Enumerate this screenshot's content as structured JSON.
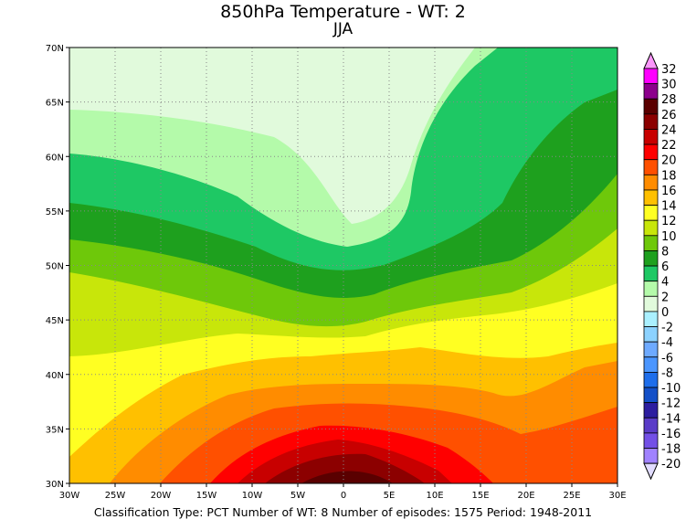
{
  "title": "850hPa Temperature - WT: 2",
  "subtitle": "JJA",
  "footer": "Classification Type: PCT Number of WT: 8 Number of episodes: 1575 Period: 1948-2011",
  "map": {
    "lon_range": [
      -30,
      30
    ],
    "lat_range": [
      30,
      70
    ],
    "lon_ticks": [
      "30W",
      "25W",
      "20W",
      "15W",
      "10W",
      "5W",
      "0",
      "5E",
      "10E",
      "15E",
      "20E",
      "25E",
      "30E"
    ],
    "lat_ticks": [
      "70N",
      "65N",
      "60N",
      "55N",
      "50N",
      "45N",
      "40N",
      "35N",
      "30N"
    ],
    "grid": "dotted every 5 degrees",
    "field": "850hPa temperature (°C), shaded contours"
  },
  "colorbar": {
    "labels": [
      "32",
      "30",
      "28",
      "26",
      "24",
      "22",
      "20",
      "18",
      "16",
      "14",
      "12",
      "10",
      "8",
      "6",
      "4",
      "2",
      "0",
      "-2",
      "-4",
      "-6",
      "-8",
      "-10",
      "-12",
      "-14",
      "-16",
      "-18",
      "-20"
    ],
    "over_color": "#fa96fa",
    "under_color": "#e1dcff",
    "colors": [
      "#ff00ff",
      "#8c008c",
      "#5a0000",
      "#8c0000",
      "#c80000",
      "#ff0000",
      "#ff5000",
      "#ff8c00",
      "#ffc000",
      "#ffff22",
      "#c8e60a",
      "#6ec80a",
      "#1ea01e",
      "#1ec864",
      "#b4faaa",
      "#e1fadc",
      "#aaf0ff",
      "#8cd2ff",
      "#6eaaff",
      "#4b96ff",
      "#1e6eeb",
      "#1450c8",
      "#2d1ea0",
      "#5a3cc8",
      "#7350e6",
      "#a082ff"
    ]
  }
}
